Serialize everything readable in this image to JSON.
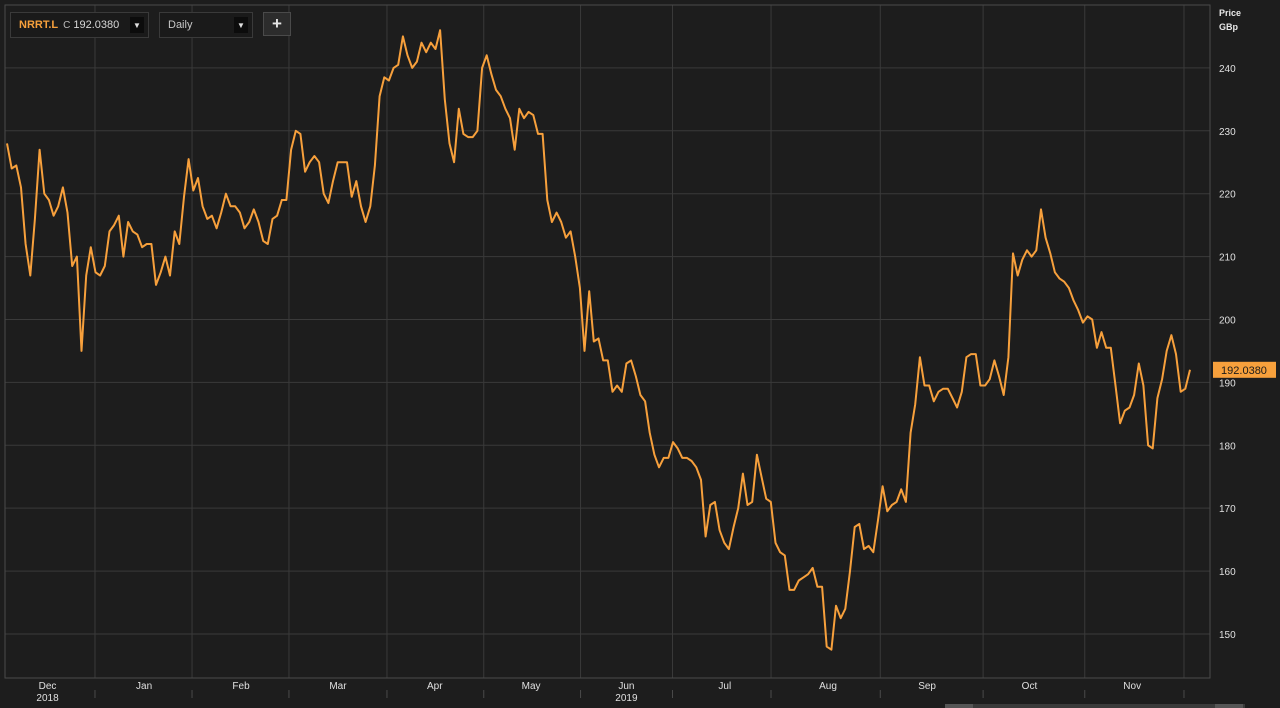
{
  "toolbar": {
    "ric": "NRRT.L",
    "close_label": "C",
    "close_value": "192.0380",
    "interval": "Daily",
    "dropdown_arrow": "▼",
    "add_label": "+"
  },
  "axis_title": {
    "line1": "Price",
    "line2": "GBp"
  },
  "colors": {
    "background": "#1d1d1d",
    "grid": "#3a3a3a",
    "line": "#f7a03c",
    "text": "#e0e0e0",
    "price_tag_bg": "#f7a03c",
    "price_tag_text": "#1a1a1a"
  },
  "chart_data": {
    "type": "line",
    "title": "",
    "xlabel": "",
    "ylabel": "Price GBp",
    "ylim": [
      143,
      250
    ],
    "y_ticks": [
      150,
      160,
      170,
      180,
      190,
      200,
      210,
      220,
      230,
      240
    ],
    "grid": true,
    "x_tick_labels": [
      "Dec",
      "Jan",
      "Feb",
      "Mar",
      "Apr",
      "May",
      "Jun",
      "Jul",
      "Aug",
      "Sep",
      "Oct",
      "Nov"
    ],
    "year_labels": [
      {
        "label": "2018",
        "month": "Dec"
      },
      {
        "label": "2019",
        "month": "Jun"
      }
    ],
    "last_value": "192.0380",
    "series": [
      {
        "values": [
          228,
          224,
          224.5,
          221,
          212,
          207,
          216,
          227,
          220,
          219,
          216.5,
          218,
          221,
          217,
          208.5,
          210,
          195,
          207,
          211.5,
          207.5,
          207,
          208.5,
          214,
          215,
          216.5,
          210,
          215.5,
          214,
          213.5,
          211.5,
          212,
          212,
          205.5,
          207.5,
          210,
          207,
          214,
          212,
          219.5,
          225.5,
          220.5,
          222.5,
          218,
          216,
          216.5,
          214.5,
          217,
          220,
          218,
          218,
          217,
          214.5,
          215.5,
          217.5,
          215.5,
          212.5,
          212,
          216,
          216.5,
          219,
          219,
          227,
          230,
          229.5,
          223.5,
          225,
          226,
          225,
          220,
          218.5,
          222,
          225,
          225,
          225,
          219.5,
          222,
          218,
          215.5,
          218,
          224.5,
          235.5,
          238.5,
          238,
          240,
          240.5,
          245,
          242,
          240,
          241,
          244,
          242.5,
          244,
          243,
          246,
          235,
          228,
          225,
          233.5,
          229.5,
          229,
          229,
          230,
          240,
          242,
          239,
          236.5,
          235.5,
          233.5,
          232,
          227,
          233.5,
          232,
          233,
          232.5,
          229.5,
          229.5,
          219,
          215.5,
          217,
          215.5,
          213,
          214,
          210,
          205,
          195,
          204.5,
          196.5,
          197,
          193.5,
          193.5,
          188.5,
          189.5,
          188.5,
          193,
          193.5,
          191,
          188,
          187,
          182,
          178.5,
          176.5,
          178,
          178,
          180.5,
          179.5,
          178,
          178,
          177.5,
          176.5,
          174.5,
          165.5,
          170.5,
          171,
          166.5,
          164.5,
          163.5,
          167,
          170,
          175.5,
          170.5,
          171,
          178.5,
          175,
          171.5,
          171,
          164.5,
          163,
          162.5,
          157,
          157,
          158.5,
          159,
          159.5,
          160.5,
          157.5,
          157.5,
          148,
          147.5,
          154.5,
          152.5,
          154,
          160,
          167,
          167.5,
          163.5,
          164,
          163,
          168,
          173.5,
          169.5,
          170.5,
          171,
          173,
          171,
          182,
          186.5,
          194,
          189.5,
          189.5,
          187,
          188.5,
          189,
          189,
          187.5,
          186,
          188.5,
          194,
          194.5,
          194.5,
          189.5,
          189.5,
          190.5,
          193.5,
          191,
          188,
          194,
          210.5,
          207,
          209.5,
          211,
          210,
          211,
          217.5,
          213,
          210.5,
          207.5,
          206.5,
          206,
          205,
          203,
          201.5,
          199.5,
          200.5,
          200,
          195.5,
          198,
          195.5,
          195.5,
          189.5,
          183.5,
          185.5,
          186,
          188,
          193,
          189.5,
          180,
          179.5,
          187.5,
          190.5,
          195,
          197.5,
          194.5,
          188.5,
          189,
          192
        ]
      }
    ]
  }
}
